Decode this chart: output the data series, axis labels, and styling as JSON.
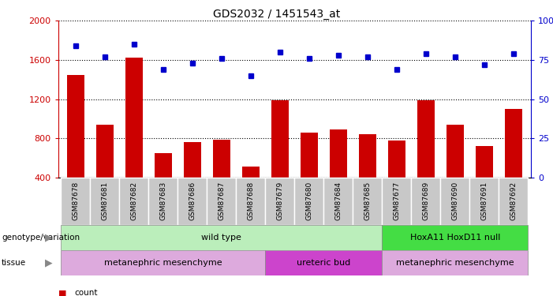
{
  "title": "GDS2032 / 1451543_at",
  "samples": [
    "GSM87678",
    "GSM87681",
    "GSM87682",
    "GSM87683",
    "GSM87686",
    "GSM87687",
    "GSM87688",
    "GSM87679",
    "GSM87680",
    "GSM87684",
    "GSM87685",
    "GSM87677",
    "GSM87689",
    "GSM87690",
    "GSM87691",
    "GSM87692"
  ],
  "counts": [
    1450,
    940,
    1620,
    650,
    760,
    790,
    510,
    1190,
    860,
    890,
    840,
    780,
    1190,
    940,
    720,
    1100
  ],
  "percentiles": [
    84,
    77,
    85,
    69,
    73,
    76,
    65,
    80,
    76,
    78,
    77,
    69,
    79,
    77,
    72,
    79
  ],
  "ylim_left": [
    400,
    2000
  ],
  "ylim_right": [
    0,
    100
  ],
  "yticks_left": [
    400,
    800,
    1200,
    1600,
    2000
  ],
  "yticks_right": [
    0,
    25,
    50,
    75,
    100
  ],
  "bar_color": "#cc0000",
  "dot_color": "#0000cc",
  "bar_width": 0.6,
  "genotype_row": [
    {
      "label": "wild type",
      "start": 0,
      "end": 10,
      "color": "#bbeebb"
    },
    {
      "label": "HoxA11 HoxD11 null",
      "start": 11,
      "end": 15,
      "color": "#44dd44"
    }
  ],
  "tissue_row": [
    {
      "label": "metanephric mesenchyme",
      "start": 0,
      "end": 6,
      "color": "#ddaadd"
    },
    {
      "label": "ureteric bud",
      "start": 7,
      "end": 10,
      "color": "#cc44cc"
    },
    {
      "label": "metanephric mesenchyme",
      "start": 11,
      "end": 15,
      "color": "#ddaadd"
    }
  ],
  "legend_count_color": "#cc0000",
  "legend_pct_color": "#0000cc",
  "sample_box_color": "#c8c8c8"
}
